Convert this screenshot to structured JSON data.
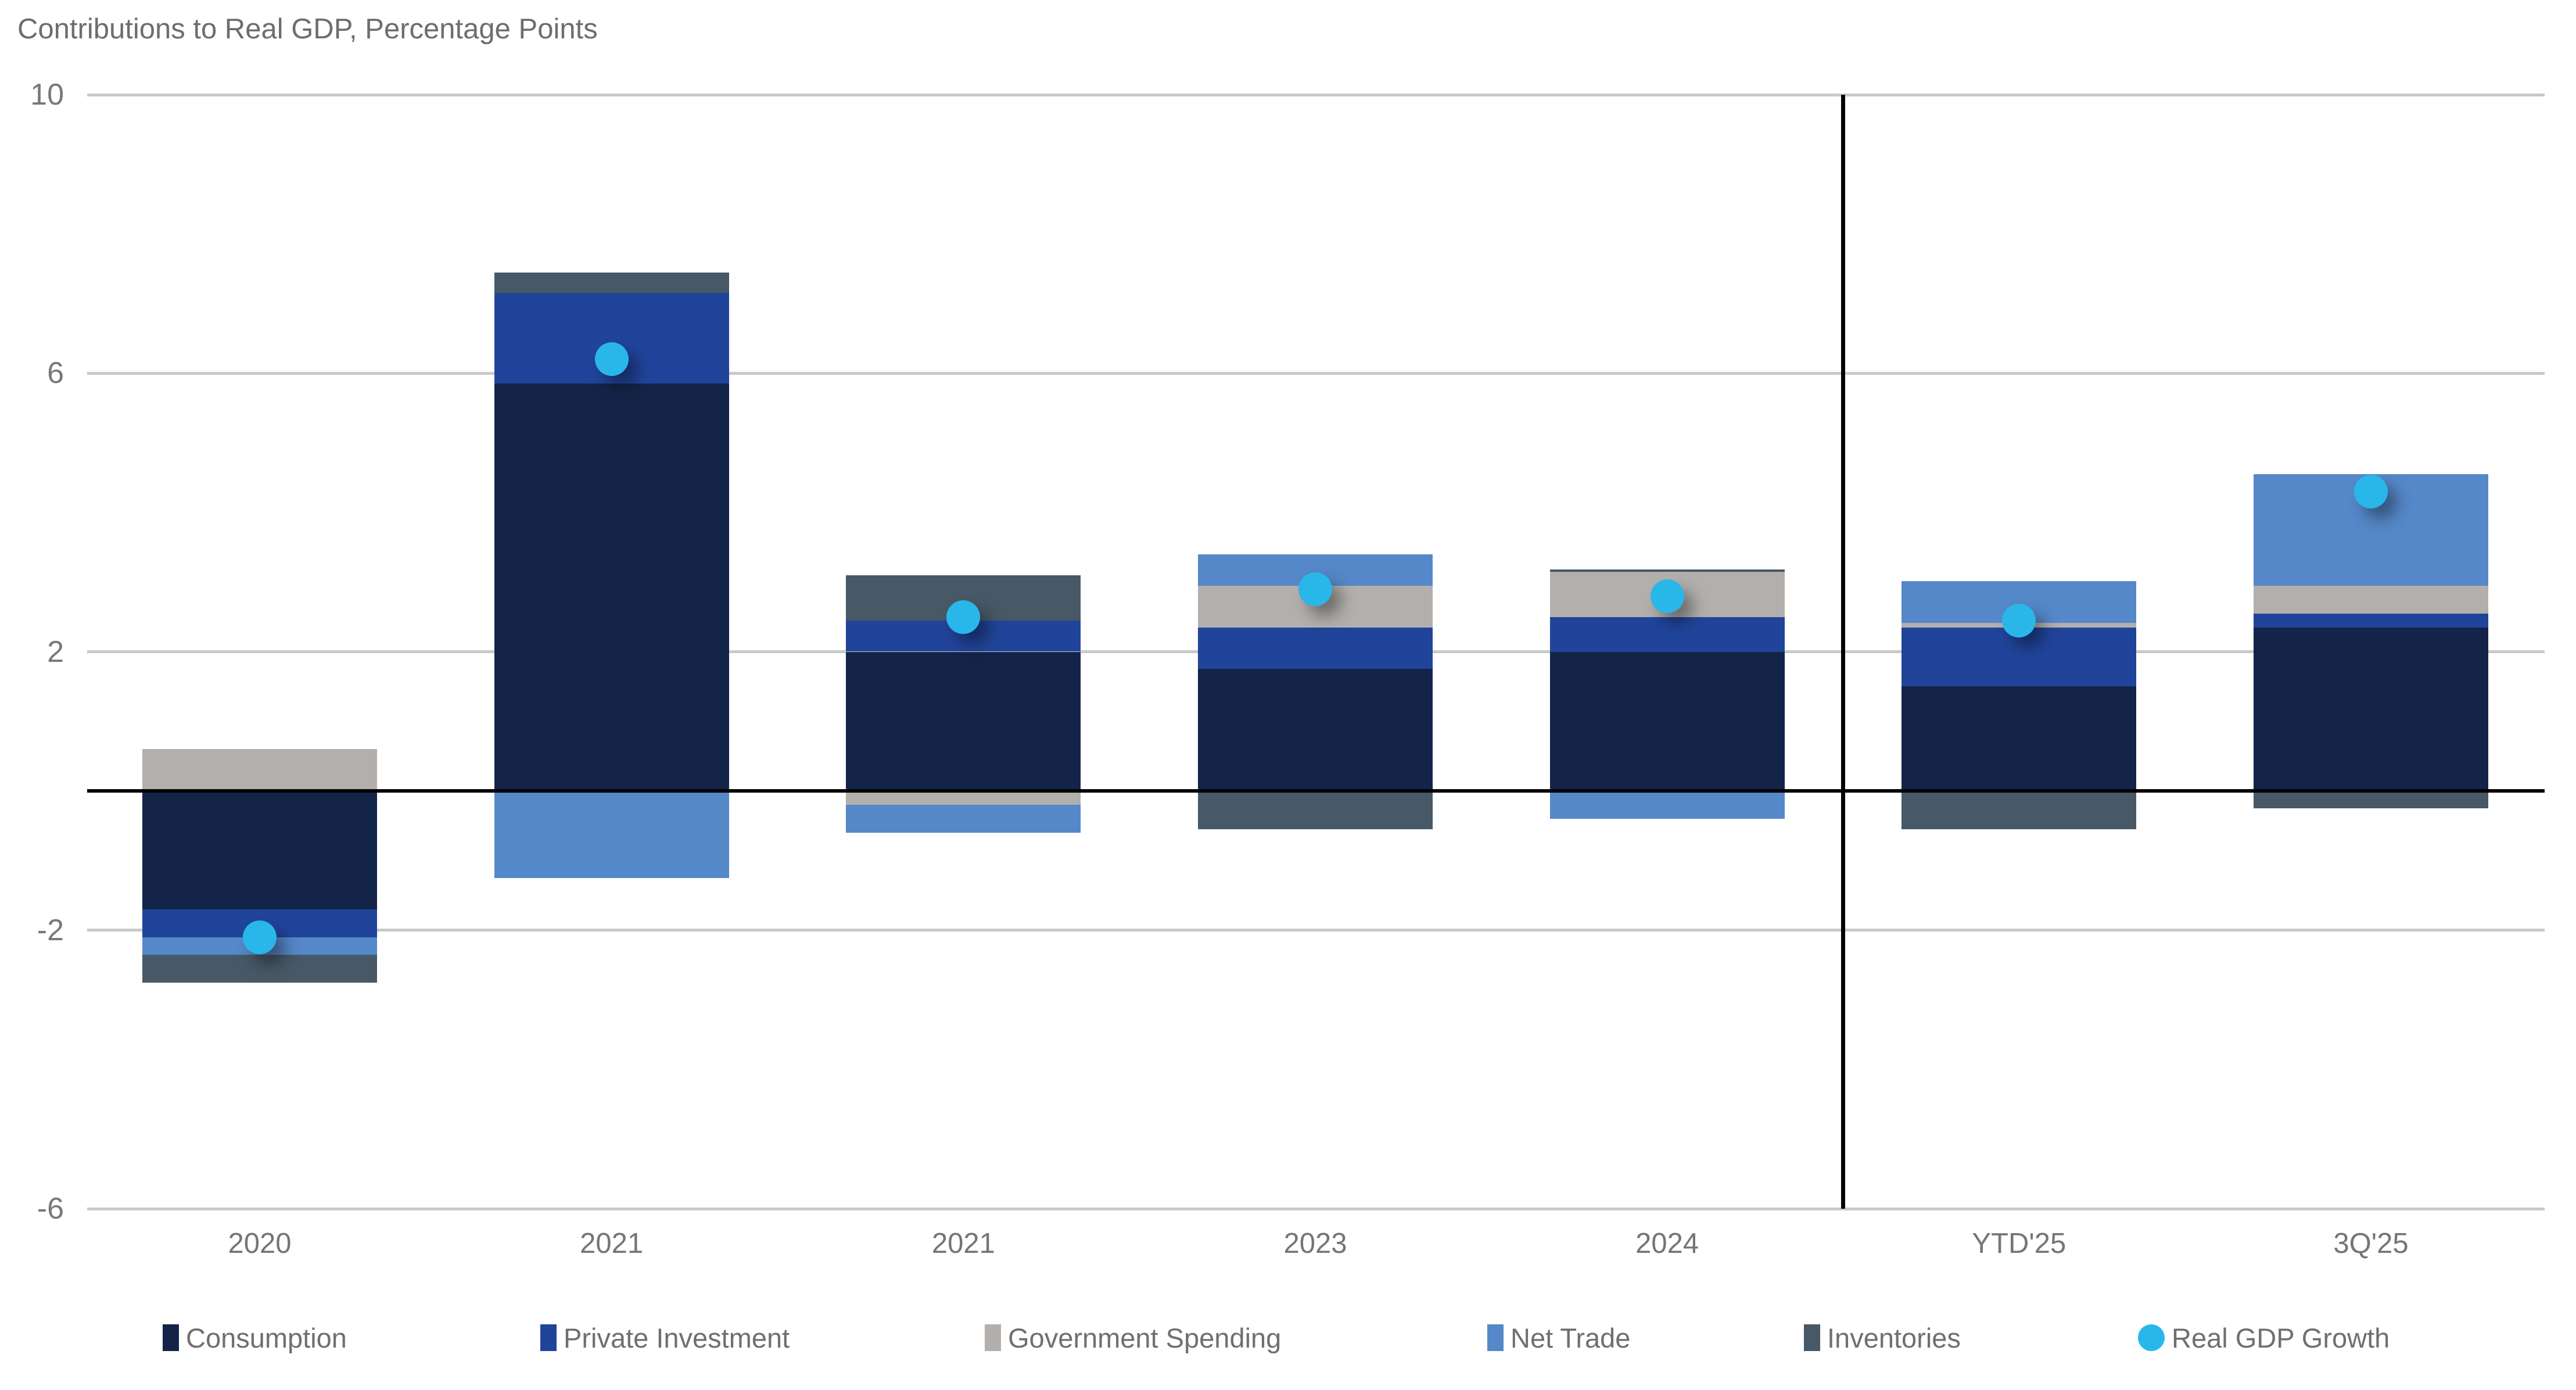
{
  "chart_data": {
    "type": "bar",
    "subtype": "stacked-bar-with-gdp-dots",
    "title": "Contributions to Real GDP, Percentage Points",
    "categories": [
      "2020",
      "2021",
      "2021",
      "2023",
      "2024",
      "YTD'25",
      "3Q'25"
    ],
    "series": [
      {
        "name": "Consumption",
        "color": "#132448",
        "values": [
          -1.7,
          5.85,
          2.0,
          1.75,
          2.0,
          1.5,
          2.35
        ]
      },
      {
        "name": "Private Investment",
        "color": "#21449B",
        "values": [
          -0.4,
          1.3,
          0.45,
          0.6,
          0.5,
          0.85,
          0.2
        ]
      },
      {
        "name": "Government Spending",
        "color": "#B2AFAC",
        "values": [
          0.6,
          0.0,
          -0.2,
          0.6,
          0.65,
          0.06,
          0.4
        ]
      },
      {
        "name": "Net Trade",
        "color": "#5588C8",
        "values": [
          -0.25,
          -1.25,
          -0.4,
          0.45,
          -0.4,
          0.6,
          1.6
        ]
      },
      {
        "name": "Inventories",
        "color": "#475866",
        "values": [
          -0.4,
          0.3,
          0.65,
          -0.55,
          0.03,
          -0.55,
          -0.25
        ]
      }
    ],
    "dot_series": {
      "name": "Real GDP Growth",
      "color": "#29B7EA",
      "values": [
        -2.1,
        6.2,
        2.5,
        2.9,
        2.8,
        2.45,
        4.3
      ]
    },
    "y_axis": {
      "ticks": [
        10,
        6,
        2,
        -2,
        -6
      ],
      "min": -6,
      "max": 10
    },
    "grid": {
      "color": "#c9c9c9",
      "zero_line_color": "#000000",
      "separator_color": "#000000",
      "separator_before_category_index": 5
    },
    "legend_position": "bottom"
  }
}
